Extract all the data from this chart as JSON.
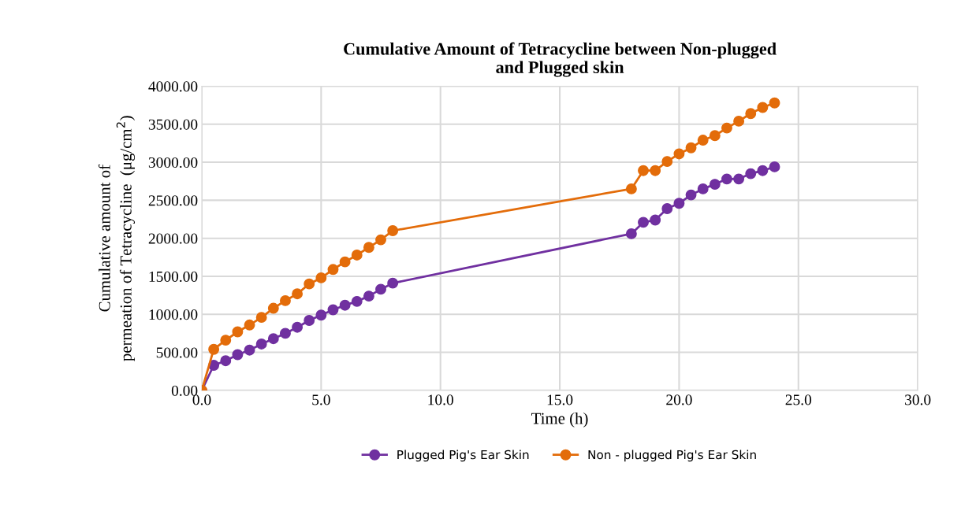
{
  "chart_data": {
    "type": "line",
    "title": "Cumulative Amount of Tetracycline between Non-plugged\nand Plugged skin",
    "xlabel": "Time (h)",
    "ylabel": "Cumulative amount of\npermeation of Tetracycline  (μg/cm$^{2}$)",
    "x": [
      0,
      0.5,
      1,
      1.5,
      2,
      2.5,
      3,
      3.5,
      4,
      4.5,
      5,
      5.5,
      6,
      6.5,
      7,
      7.5,
      8,
      18,
      18.5,
      19,
      19.5,
      20,
      20.5,
      21,
      21.5,
      22,
      22.5,
      23,
      23.5,
      24
    ],
    "series": [
      {
        "name": "Plugged Pig's Ear Skin",
        "color": "#7030a0",
        "values": [
          0,
          330,
          390,
          470,
          530,
          610,
          680,
          750,
          830,
          920,
          990,
          1060,
          1120,
          1170,
          1240,
          1330,
          1410,
          2060,
          2210,
          2240,
          2390,
          2460,
          2570,
          2650,
          2710,
          2780,
          2780,
          2850,
          2890,
          2940
        ]
      },
      {
        "name": "Non - plugged Pig's Ear Skin",
        "color": "#e36c0a",
        "values": [
          0,
          540,
          660,
          770,
          860,
          960,
          1080,
          1180,
          1270,
          1400,
          1480,
          1590,
          1690,
          1780,
          1880,
          1980,
          2100,
          2650,
          2890,
          2890,
          3010,
          3110,
          3190,
          3290,
          3350,
          3450,
          3540,
          3640,
          3720,
          3780
        ]
      }
    ],
    "xlim": [
      0,
      30
    ],
    "ylim": [
      0,
      4000
    ],
    "xticks": [
      {
        "value": 0,
        "label": "0.0"
      },
      {
        "value": 5,
        "label": "5.0"
      },
      {
        "value": 10,
        "label": "10.0"
      },
      {
        "value": 15,
        "label": "15.0"
      },
      {
        "value": 20,
        "label": "20.0"
      },
      {
        "value": 25,
        "label": "25.0"
      },
      {
        "value": 30,
        "label": "30.0"
      }
    ],
    "yticks": [
      {
        "value": 0,
        "label": "0.00"
      },
      {
        "value": 500,
        "label": "500.00"
      },
      {
        "value": 1000,
        "label": "1000.00"
      },
      {
        "value": 1500,
        "label": "1500.00"
      },
      {
        "value": 2000,
        "label": "2000.00"
      },
      {
        "value": 2500,
        "label": "2500.00"
      },
      {
        "value": 3000,
        "label": "3000.00"
      },
      {
        "value": 3500,
        "label": "3500.00"
      },
      {
        "value": 4000,
        "label": "4000.00"
      }
    ],
    "grid": true,
    "legend": "bottom",
    "marker": "circle",
    "line_style": "solid"
  }
}
